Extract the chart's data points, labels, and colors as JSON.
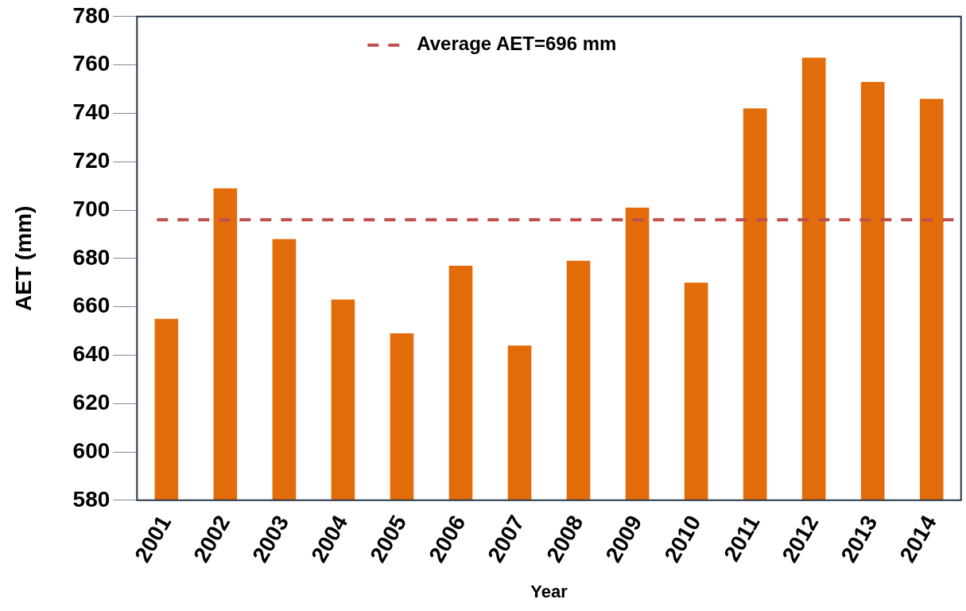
{
  "chart_data": {
    "type": "bar",
    "xlabel": "Year",
    "ylabel": "AET (mm)",
    "categories": [
      "2001",
      "2002",
      "2003",
      "2004",
      "2005",
      "2006",
      "2007",
      "2008",
      "2009",
      "2010",
      "2011",
      "2012",
      "2013",
      "2014"
    ],
    "values": [
      655,
      709,
      688,
      663,
      649,
      677,
      644,
      679,
      701,
      670,
      742,
      763,
      753,
      746
    ],
    "color": "#e36c0a",
    "ylim": [
      580,
      780
    ],
    "yticks": [
      580,
      600,
      620,
      640,
      660,
      680,
      700,
      720,
      740,
      760,
      780
    ],
    "grid": false,
    "ref_lines": [
      {
        "axis": "y",
        "value": 696,
        "label": "Average AET=696 mm",
        "color": "#c0504d",
        "line_style": "dashed"
      }
    ]
  }
}
